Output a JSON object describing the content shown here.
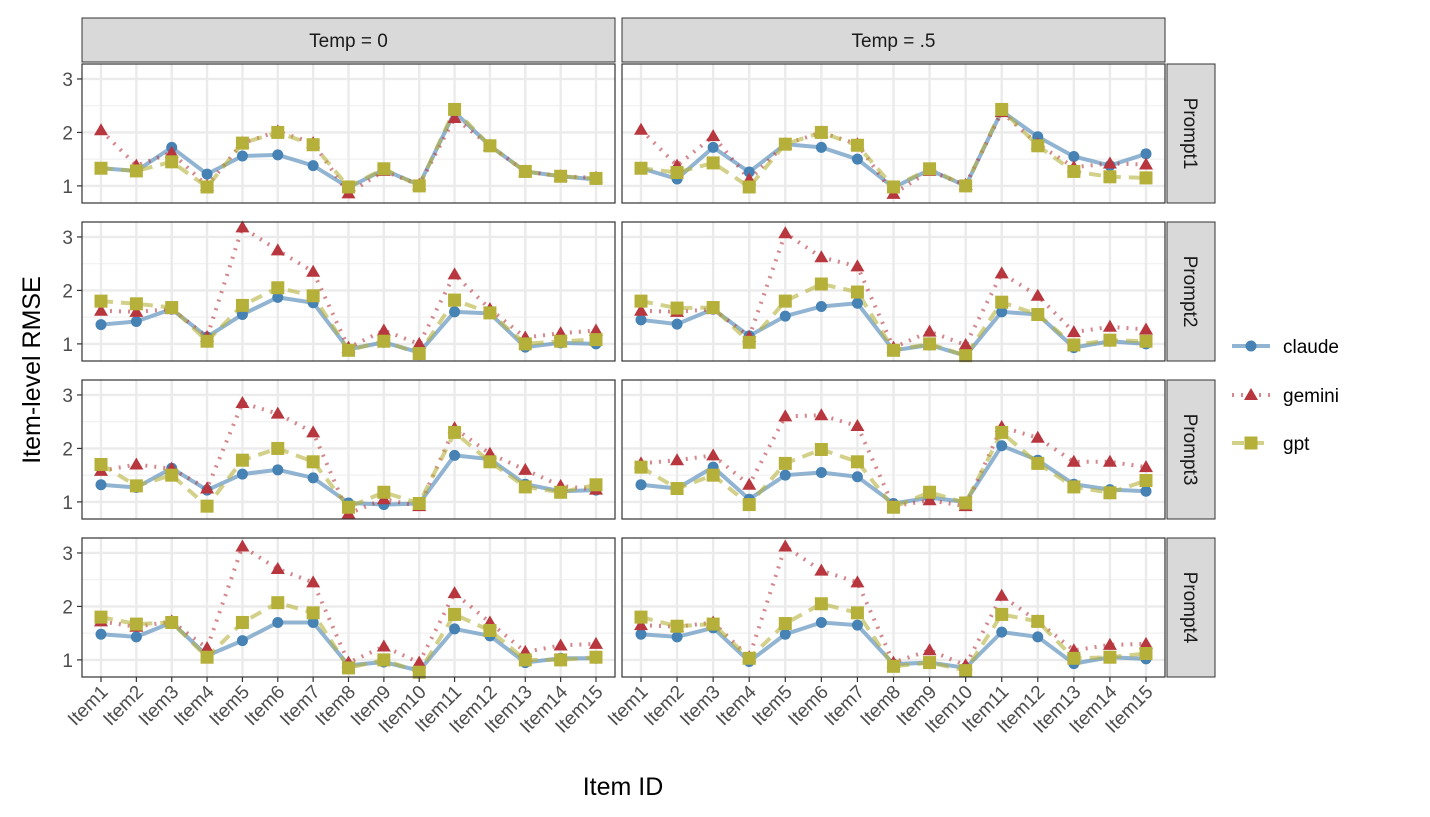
{
  "chart_data": {
    "type": "line",
    "xlabel": "Item ID",
    "ylabel": "Item-level RMSE",
    "ylim": [
      0.68,
      3.28
    ],
    "yticks": [
      1,
      2,
      3
    ],
    "grid": true,
    "legend_position": "right",
    "categories": [
      "Item1",
      "Item2",
      "Item3",
      "Item4",
      "Item5",
      "Item6",
      "Item7",
      "Item8",
      "Item9",
      "Item10",
      "Item11",
      "Item12",
      "Item13",
      "Item14",
      "Item15"
    ],
    "columns": [
      "Temp = 0",
      "Temp = .5"
    ],
    "rows": [
      "Prompt1",
      "Prompt2",
      "Prompt3",
      "Prompt4"
    ],
    "series_style": [
      {
        "name": "claude",
        "color": "#4682b4",
        "marker": "circle",
        "line": "solid"
      },
      {
        "name": "gemini",
        "color": "#b8373f",
        "marker": "triangle",
        "line": "dotted"
      },
      {
        "name": "gpt",
        "color": "#b5b03a",
        "marker": "square",
        "line": "dashed"
      }
    ],
    "panels": [
      {
        "row": "Prompt1",
        "col": "Temp = 0",
        "series": [
          {
            "name": "claude",
            "values": [
              1.33,
              1.28,
              1.72,
              1.22,
              1.56,
              1.58,
              1.38,
              0.97,
              1.3,
              1.02,
              2.38,
              1.75,
              1.27,
              1.18,
              1.12
            ]
          },
          {
            "name": "gemini",
            "values": [
              2.04,
              1.38,
              1.62,
              1.0,
              1.8,
              2.02,
              1.8,
              0.86,
              1.28,
              1.02,
              2.27,
              1.75,
              1.27,
              1.18,
              1.15
            ]
          },
          {
            "name": "gpt",
            "values": [
              1.33,
              1.28,
              1.45,
              0.98,
              1.8,
              2.0,
              1.77,
              0.98,
              1.32,
              1.0,
              2.43,
              1.75,
              1.27,
              1.18,
              1.14
            ]
          }
        ]
      },
      {
        "row": "Prompt1",
        "col": "Temp = .5",
        "series": [
          {
            "name": "claude",
            "values": [
              1.33,
              1.13,
              1.72,
              1.26,
              1.78,
              1.72,
              1.5,
              0.97,
              1.3,
              1.0,
              2.4,
              1.92,
              1.55,
              1.38,
              1.6
            ]
          },
          {
            "name": "gemini",
            "values": [
              2.05,
              1.38,
              1.93,
              1.12,
              1.78,
              2.0,
              1.78,
              0.85,
              1.28,
              1.02,
              2.38,
              1.78,
              1.35,
              1.42,
              1.4
            ]
          },
          {
            "name": "gpt",
            "values": [
              1.33,
              1.25,
              1.43,
              0.98,
              1.78,
              2.0,
              1.76,
              0.98,
              1.32,
              1.0,
              2.43,
              1.75,
              1.27,
              1.17,
              1.15
            ]
          }
        ]
      },
      {
        "row": "Prompt2",
        "col": "Temp = 0",
        "series": [
          {
            "name": "claude",
            "values": [
              1.36,
              1.42,
              1.65,
              1.13,
              1.55,
              1.87,
              1.77,
              0.9,
              1.03,
              0.84,
              1.6,
              1.57,
              0.94,
              1.02,
              1.0
            ]
          },
          {
            "name": "gemini",
            "values": [
              1.62,
              1.6,
              1.65,
              1.13,
              3.18,
              2.75,
              2.35,
              0.93,
              1.25,
              1.0,
              2.3,
              1.65,
              1.12,
              1.2,
              1.25
            ]
          },
          {
            "name": "gpt",
            "values": [
              1.8,
              1.75,
              1.68,
              1.05,
              1.72,
              2.05,
              1.9,
              0.88,
              1.05,
              0.82,
              1.82,
              1.58,
              1.0,
              1.05,
              1.08
            ]
          }
        ]
      },
      {
        "row": "Prompt2",
        "col": "Temp = .5",
        "series": [
          {
            "name": "claude",
            "values": [
              1.45,
              1.37,
              1.65,
              1.15,
              1.52,
              1.7,
              1.76,
              0.88,
              0.98,
              0.78,
              1.6,
              1.55,
              0.93,
              1.05,
              1.0
            ]
          },
          {
            "name": "gemini",
            "values": [
              1.62,
              1.6,
              1.65,
              1.13,
              3.07,
              2.62,
              2.45,
              0.93,
              1.23,
              0.98,
              2.32,
              1.9,
              1.22,
              1.32,
              1.27
            ]
          },
          {
            "name": "gpt",
            "values": [
              1.8,
              1.67,
              1.68,
              1.03,
              1.8,
              2.12,
              1.97,
              0.88,
              1.0,
              0.78,
              1.78,
              1.55,
              0.98,
              1.07,
              1.05
            ]
          }
        ]
      },
      {
        "row": "Prompt3",
        "col": "Temp = 0",
        "series": [
          {
            "name": "claude",
            "values": [
              1.32,
              1.27,
              1.63,
              1.22,
              1.52,
              1.6,
              1.45,
              0.98,
              0.95,
              0.97,
              1.87,
              1.8,
              1.33,
              1.2,
              1.22
            ]
          },
          {
            "name": "gemini",
            "values": [
              1.58,
              1.7,
              1.62,
              1.25,
              2.85,
              2.65,
              2.3,
              0.78,
              1.05,
              0.92,
              2.38,
              1.9,
              1.6,
              1.3,
              1.23
            ]
          },
          {
            "name": "gpt",
            "values": [
              1.7,
              1.3,
              1.5,
              0.92,
              1.78,
              2.0,
              1.75,
              0.9,
              1.18,
              0.97,
              2.3,
              1.75,
              1.28,
              1.18,
              1.32
            ]
          }
        ]
      },
      {
        "row": "Prompt3",
        "col": "Temp = .5",
        "series": [
          {
            "name": "claude",
            "values": [
              1.32,
              1.25,
              1.65,
              1.05,
              1.5,
              1.55,
              1.47,
              0.97,
              1.08,
              1.0,
              2.05,
              1.78,
              1.33,
              1.23,
              1.2
            ]
          },
          {
            "name": "gemini",
            "values": [
              1.72,
              1.78,
              1.87,
              1.32,
              2.6,
              2.62,
              2.42,
              0.92,
              1.03,
              0.92,
              2.4,
              2.2,
              1.75,
              1.75,
              1.65
            ]
          },
          {
            "name": "gpt",
            "values": [
              1.65,
              1.25,
              1.5,
              0.95,
              1.72,
              1.98,
              1.75,
              0.9,
              1.18,
              0.98,
              2.3,
              1.72,
              1.28,
              1.17,
              1.4
            ]
          }
        ]
      },
      {
        "row": "Prompt4",
        "col": "Temp = 0",
        "series": [
          {
            "name": "claude",
            "values": [
              1.48,
              1.43,
              1.7,
              1.08,
              1.36,
              1.7,
              1.7,
              0.9,
              0.96,
              0.8,
              1.58,
              1.45,
              0.95,
              1.03,
              1.03
            ]
          },
          {
            "name": "gemini",
            "values": [
              1.72,
              1.62,
              1.72,
              1.22,
              3.12,
              2.7,
              2.45,
              0.95,
              1.25,
              0.95,
              2.25,
              1.7,
              1.15,
              1.27,
              1.3
            ]
          },
          {
            "name": "gpt",
            "values": [
              1.8,
              1.67,
              1.7,
              1.05,
              1.7,
              2.07,
              1.88,
              0.85,
              1.0,
              0.77,
              1.85,
              1.55,
              1.0,
              1.0,
              1.05
            ]
          }
        ]
      },
      {
        "row": "Prompt4",
        "col": "Temp = .5",
        "series": [
          {
            "name": "claude",
            "values": [
              1.48,
              1.43,
              1.6,
              0.97,
              1.48,
              1.7,
              1.65,
              0.92,
              0.95,
              0.85,
              1.52,
              1.43,
              0.93,
              1.05,
              1.02
            ]
          },
          {
            "name": "gemini",
            "values": [
              1.65,
              1.62,
              1.7,
              1.05,
              3.12,
              2.67,
              2.45,
              0.95,
              1.18,
              0.9,
              2.2,
              1.72,
              1.18,
              1.28,
              1.3
            ]
          },
          {
            "name": "gpt",
            "values": [
              1.8,
              1.63,
              1.67,
              1.03,
              1.68,
              2.05,
              1.88,
              0.88,
              0.95,
              0.8,
              1.85,
              1.72,
              1.03,
              1.05,
              1.12
            ]
          }
        ]
      }
    ]
  }
}
